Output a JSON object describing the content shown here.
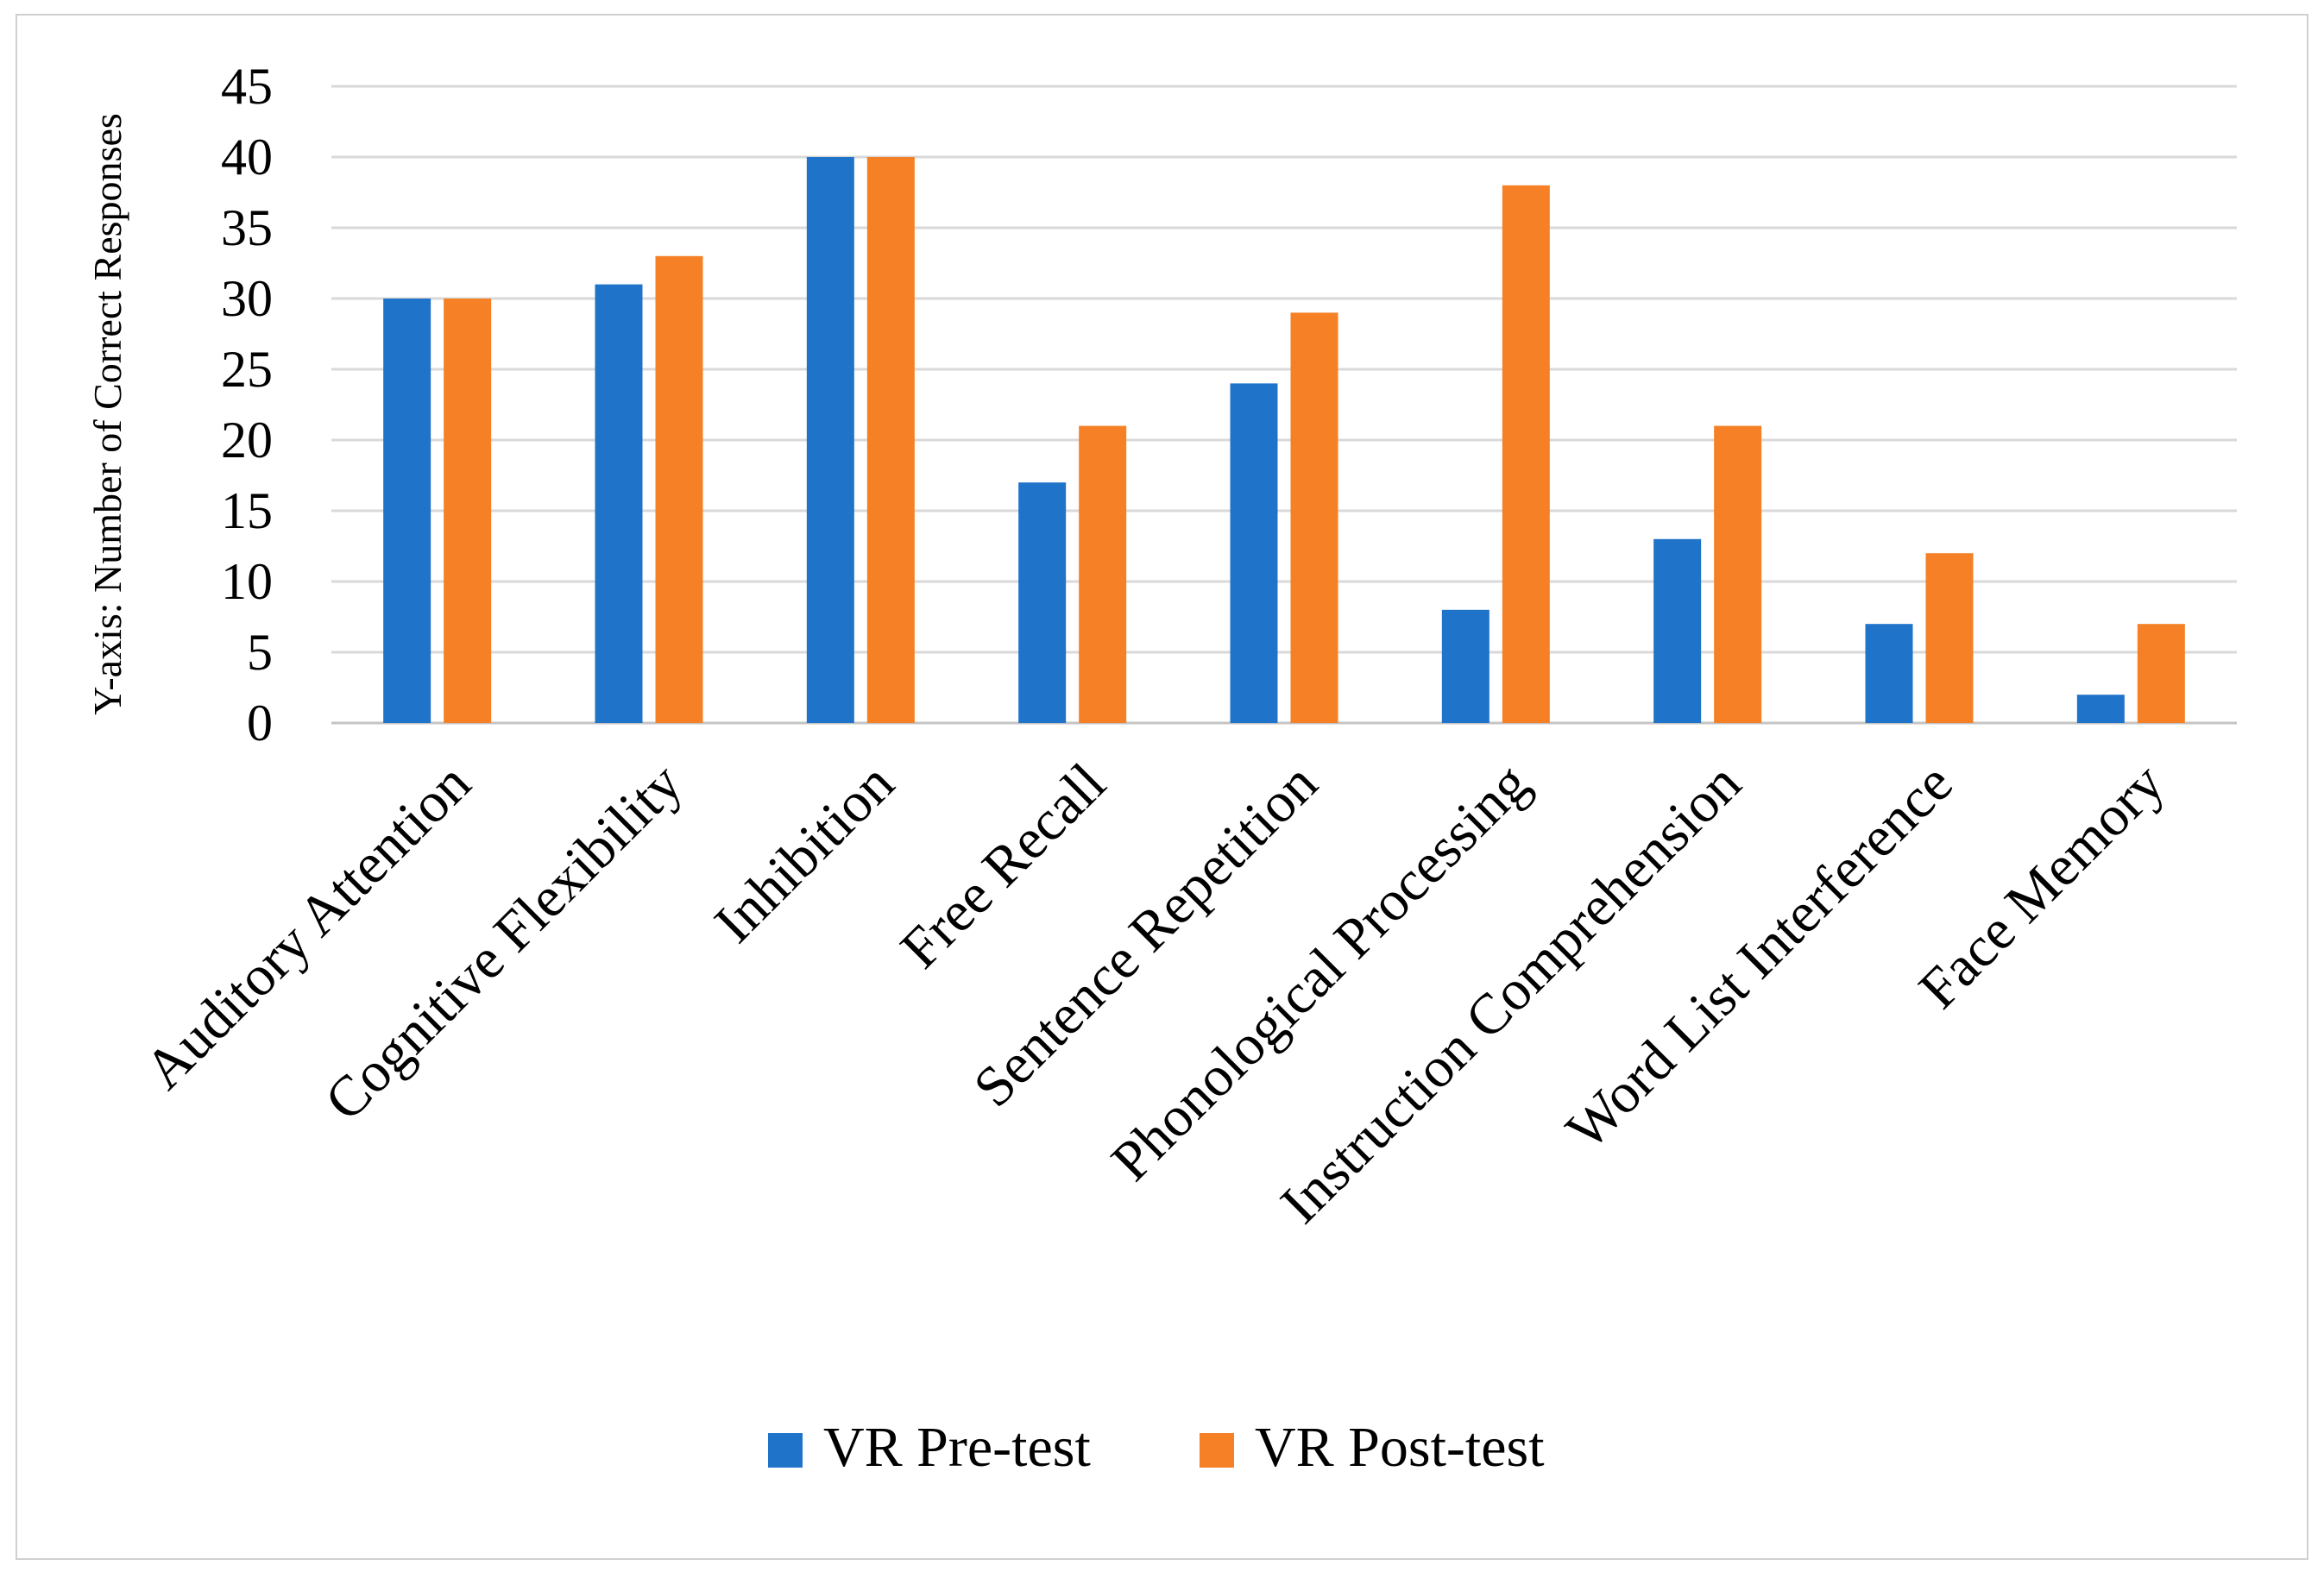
{
  "chart_data": {
    "type": "bar",
    "title": "",
    "xlabel": "",
    "ylabel": "Y-axis: Number of Correct Responses",
    "ylim": [
      0,
      45
    ],
    "yticks": [
      0,
      5,
      10,
      15,
      20,
      25,
      30,
      35,
      40,
      45
    ],
    "grid": true,
    "legend_position": "bottom",
    "categories": [
      "Auditory Attention",
      "Cognitive Flexibility",
      "Inhibition",
      "Free Recall",
      "Sentence Repetition",
      "Phonological Processing",
      "Instruction Comprehension",
      "Word List Interference",
      "Face Memory"
    ],
    "series": [
      {
        "name": "VR Pre-test",
        "color": "#1f73c9",
        "values": [
          30,
          31,
          40,
          17,
          24,
          8,
          13,
          7,
          2
        ]
      },
      {
        "name": "VR Post-test",
        "color": "#f58025",
        "values": [
          30,
          33,
          40,
          21,
          29,
          38,
          21,
          12,
          7
        ]
      }
    ]
  }
}
